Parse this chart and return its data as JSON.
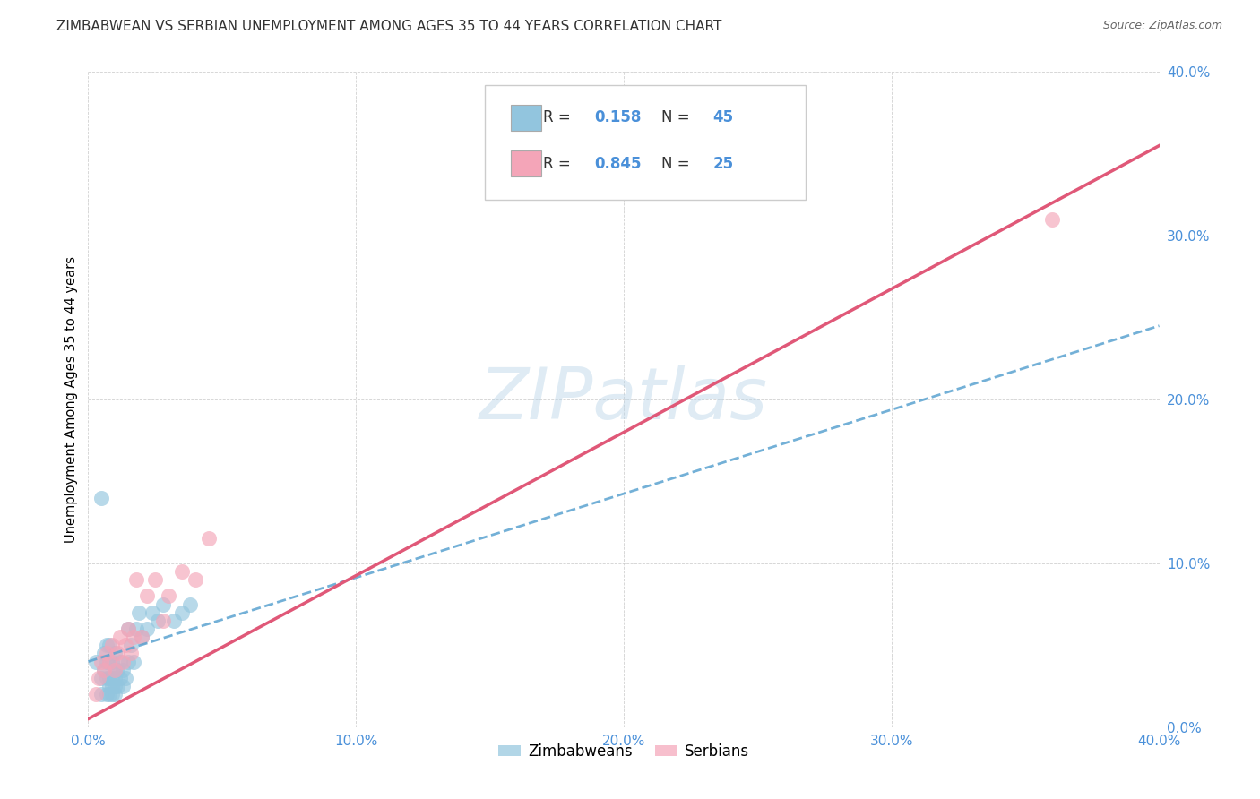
{
  "title": "ZIMBABWEAN VS SERBIAN UNEMPLOYMENT AMONG AGES 35 TO 44 YEARS CORRELATION CHART",
  "source": "Source: ZipAtlas.com",
  "ylabel": "Unemployment Among Ages 35 to 44 years",
  "xlim": [
    0.0,
    0.4
  ],
  "ylim": [
    0.0,
    0.4
  ],
  "xticks": [
    0.0,
    0.1,
    0.2,
    0.3,
    0.4
  ],
  "yticks": [
    0.0,
    0.1,
    0.2,
    0.3,
    0.4
  ],
  "tick_labels": [
    "0.0%",
    "10.0%",
    "20.0%",
    "30.0%",
    "40.0%"
  ],
  "watermark": "ZIPatlas",
  "legend_zim": "Zimbabweans",
  "legend_ser": "Serbians",
  "R_zim": "0.158",
  "N_zim": "45",
  "R_ser": "0.845",
  "N_ser": "25",
  "zim_color": "#92c5de",
  "ser_color": "#f4a5b8",
  "zim_line_color": "#5ba3d0",
  "ser_line_color": "#e05878",
  "tick_color": "#4a90d9",
  "background_color": "#ffffff",
  "title_fontsize": 11,
  "axis_label_fontsize": 10.5,
  "tick_fontsize": 11,
  "source_fontsize": 9,
  "zim_x": [
    0.003,
    0.005,
    0.005,
    0.006,
    0.006,
    0.007,
    0.007,
    0.007,
    0.007,
    0.008,
    0.008,
    0.008,
    0.008,
    0.008,
    0.009,
    0.009,
    0.009,
    0.009,
    0.01,
    0.01,
    0.01,
    0.01,
    0.01,
    0.011,
    0.011,
    0.012,
    0.012,
    0.013,
    0.013,
    0.014,
    0.015,
    0.015,
    0.016,
    0.017,
    0.018,
    0.019,
    0.02,
    0.022,
    0.024,
    0.026,
    0.028,
    0.032,
    0.035,
    0.038,
    0.005
  ],
  "zim_y": [
    0.04,
    0.02,
    0.03,
    0.035,
    0.045,
    0.02,
    0.03,
    0.04,
    0.05,
    0.02,
    0.025,
    0.03,
    0.04,
    0.05,
    0.02,
    0.025,
    0.03,
    0.04,
    0.02,
    0.025,
    0.03,
    0.035,
    0.045,
    0.025,
    0.035,
    0.03,
    0.04,
    0.025,
    0.035,
    0.03,
    0.04,
    0.06,
    0.05,
    0.04,
    0.06,
    0.07,
    0.055,
    0.06,
    0.07,
    0.065,
    0.075,
    0.065,
    0.07,
    0.075,
    0.14
  ],
  "ser_x": [
    0.003,
    0.004,
    0.005,
    0.006,
    0.007,
    0.008,
    0.009,
    0.01,
    0.011,
    0.012,
    0.013,
    0.014,
    0.015,
    0.016,
    0.017,
    0.018,
    0.02,
    0.022,
    0.025,
    0.028,
    0.03,
    0.035,
    0.04,
    0.045,
    0.36
  ],
  "ser_y": [
    0.02,
    0.03,
    0.04,
    0.035,
    0.045,
    0.04,
    0.05,
    0.035,
    0.045,
    0.055,
    0.04,
    0.05,
    0.06,
    0.045,
    0.055,
    0.09,
    0.055,
    0.08,
    0.09,
    0.065,
    0.08,
    0.095,
    0.09,
    0.115,
    0.31
  ],
  "zim_line_x": [
    0.0,
    0.4
  ],
  "zim_line_y": [
    0.04,
    0.245
  ],
  "ser_line_x": [
    0.0,
    0.4
  ],
  "ser_line_y": [
    0.005,
    0.355
  ]
}
